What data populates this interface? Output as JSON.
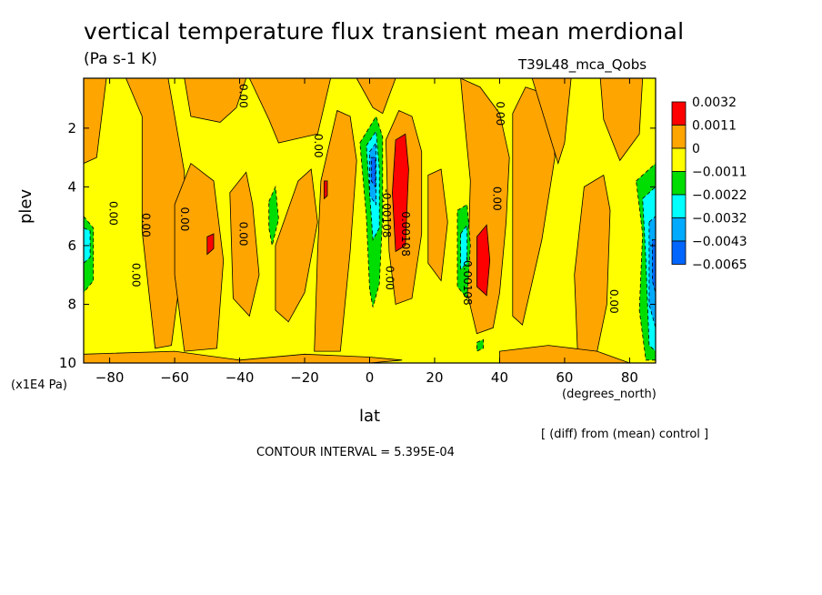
{
  "chart_data": {
    "type": "heatmap",
    "title": "vertical temperature flux transient mean merdional",
    "subtitle": "(Pa s-1 K)",
    "run_name": "T39L48_mca_Qobs",
    "xlabel": "lat",
    "xunits": "(degrees_north)",
    "ylabel": "plev",
    "yunits": "(x1E4 Pa)",
    "note": "[ (diff) from (mean) control ]",
    "contour_interval": "CONTOUR INTERVAL = 5.395E-04",
    "xlim": [
      -88,
      88
    ],
    "ylim": [
      10,
      0.3
    ],
    "xticks": [
      -80,
      -60,
      -40,
      -20,
      0,
      20,
      40,
      60,
      80
    ],
    "yticks": [
      2,
      4,
      6,
      8,
      10
    ],
    "legend": {
      "position": "right",
      "levels": [
        "0.0032",
        "0.0011",
        "0",
        "-0.0011",
        "-0.0022",
        "-0.0032",
        "-0.0043",
        "-0.0065"
      ],
      "colors": [
        "#ff0000",
        "#ffa500",
        "#ffff00",
        "#00dd00",
        "#00ffff",
        "#00aaff",
        "#0066ff"
      ]
    },
    "contour_labels": [
      {
        "text": "0.00",
        "lat": -40,
        "plev": 0.9
      },
      {
        "text": "0.00",
        "lat": -80,
        "plev": 4.9
      },
      {
        "text": "0.00",
        "lat": -73,
        "plev": 7.0
      },
      {
        "text": "0.00",
        "lat": -70,
        "plev": 5.3
      },
      {
        "text": "0.00",
        "lat": -58,
        "plev": 5.1
      },
      {
        "text": "0.00",
        "lat": -40,
        "plev": 5.6
      },
      {
        "text": "0.00",
        "lat": -17,
        "plev": 2.6
      },
      {
        "text": "-0.00108",
        "lat": 4,
        "plev": 4.9
      },
      {
        "text": "0.00108",
        "lat": 10,
        "plev": 5.6
      },
      {
        "text": "0.00",
        "lat": 5,
        "plev": 7.1
      },
      {
        "text": "-0.00108",
        "lat": 29,
        "plev": 7.2
      },
      {
        "text": "0.00",
        "lat": 38,
        "plev": 4.4
      },
      {
        "text": "0.00",
        "lat": 39,
        "plev": 1.5
      },
      {
        "text": "0.00",
        "lat": 74,
        "plev": 7.9
      }
    ],
    "regions": [
      {
        "level": "0.0011",
        "points": [
          [
            -88,
            3.2
          ],
          [
            -84,
            3.0
          ],
          [
            -81,
            0.3
          ],
          [
            -88,
            0.3
          ]
        ]
      },
      {
        "level": "0.0011",
        "points": [
          [
            -75,
            0.3
          ],
          [
            -70,
            1.6
          ],
          [
            -70,
            5.5
          ],
          [
            -66,
            9.5
          ],
          [
            -61,
            9.4
          ],
          [
            -57,
            6
          ],
          [
            -57,
            3.5
          ],
          [
            -62,
            0.3
          ]
        ]
      },
      {
        "level": "0.0011",
        "points": [
          [
            -57,
            0.3
          ],
          [
            -55,
            1.6
          ],
          [
            -46,
            1.8
          ],
          [
            -41,
            1.3
          ],
          [
            -38,
            0.3
          ]
        ]
      },
      {
        "level": "0.0011",
        "points": [
          [
            -60,
            4.6
          ],
          [
            -55,
            3.2
          ],
          [
            -48,
            3.8
          ],
          [
            -45,
            6.5
          ],
          [
            -47,
            9.5
          ],
          [
            -57,
            9.6
          ],
          [
            -60,
            7
          ]
        ]
      },
      {
        "level": "0.0011",
        "points": [
          [
            -43,
            4.2
          ],
          [
            -38,
            3.5
          ],
          [
            -36,
            4.6
          ],
          [
            -34,
            7
          ],
          [
            -37,
            8.4
          ],
          [
            -42,
            7.8
          ]
        ]
      },
      {
        "level": "0.0011",
        "points": [
          [
            -37,
            0.3
          ],
          [
            -31,
            1.7
          ],
          [
            -28,
            2.5
          ],
          [
            -20,
            2.3
          ],
          [
            -16,
            2.2
          ],
          [
            -12,
            0.3
          ]
        ]
      },
      {
        "level": "0.0011",
        "points": [
          [
            -22,
            3.8
          ],
          [
            -18,
            3.4
          ],
          [
            -16,
            5.2
          ],
          [
            -20,
            7.6
          ],
          [
            -25,
            8.6
          ],
          [
            -29,
            8.2
          ],
          [
            -29,
            6.0
          ]
        ]
      },
      {
        "level": "0.0011",
        "points": [
          [
            -15,
            3.8
          ],
          [
            -10,
            1.4
          ],
          [
            -6,
            1.6
          ],
          [
            -4,
            3.1
          ],
          [
            -6,
            6.2
          ],
          [
            -9,
            9.6
          ],
          [
            -17,
            9.6
          ],
          [
            -16,
            6.2
          ]
        ]
      },
      {
        "level": "0.0011",
        "points": [
          [
            -4,
            0.3
          ],
          [
            1,
            1.3
          ],
          [
            4,
            1.5
          ],
          [
            8,
            0.3
          ]
        ]
      },
      {
        "level": "0.0011",
        "points": [
          [
            5,
            2.4
          ],
          [
            9,
            1.4
          ],
          [
            13,
            1.6
          ],
          [
            16,
            2.8
          ],
          [
            16,
            5.6
          ],
          [
            13,
            7.8
          ],
          [
            8,
            8.0
          ],
          [
            6,
            6.2
          ]
        ]
      },
      {
        "level": "0.0011",
        "points": [
          [
            18,
            3.6
          ],
          [
            22,
            3.4
          ],
          [
            24,
            5.2
          ],
          [
            22,
            7.2
          ],
          [
            18,
            6.6
          ]
        ]
      },
      {
        "level": "0.0011",
        "points": [
          [
            28,
            0.3
          ],
          [
            34,
            0.6
          ],
          [
            40,
            1.5
          ],
          [
            43,
            3.0
          ],
          [
            42,
            5.2
          ],
          [
            40,
            7.6
          ],
          [
            38,
            8.8
          ],
          [
            33,
            9.0
          ],
          [
            30,
            7.6
          ],
          [
            31,
            3.8
          ],
          [
            29,
            1.5
          ]
        ]
      },
      {
        "level": "0.0011",
        "points": [
          [
            44,
            1.5
          ],
          [
            48,
            0.6
          ],
          [
            56,
            0.9
          ],
          [
            57,
            3.0
          ],
          [
            53,
            5.8
          ],
          [
            47,
            8.7
          ],
          [
            44,
            8.4
          ]
        ]
      },
      {
        "level": "0.0011",
        "points": [
          [
            50,
            0.3
          ],
          [
            62,
            0.3
          ],
          [
            60,
            2.5
          ],
          [
            58,
            3.2
          ]
        ]
      },
      {
        "level": "0.0011",
        "points": [
          [
            66,
            4.0
          ],
          [
            72,
            3.6
          ],
          [
            74,
            4.8
          ],
          [
            73,
            8.0
          ],
          [
            70,
            9.6
          ],
          [
            64,
            9.6
          ],
          [
            63,
            7
          ]
        ]
      },
      {
        "level": "0.0011",
        "points": [
          [
            71,
            0.3
          ],
          [
            84,
            0.3
          ],
          [
            83,
            2.2
          ],
          [
            77,
            3.1
          ],
          [
            72,
            1.7
          ]
        ]
      },
      {
        "level": "0.0011",
        "points": [
          [
            -88,
            9.7
          ],
          [
            -60,
            9.6
          ],
          [
            -40,
            9.9
          ],
          [
            -20,
            9.7
          ],
          [
            0,
            9.8
          ],
          [
            10,
            9.9
          ],
          [
            0,
            10
          ],
          [
            -88,
            10
          ]
        ]
      },
      {
        "level": "0.0011",
        "points": [
          [
            40,
            9.6
          ],
          [
            55,
            9.4
          ],
          [
            70,
            9.6
          ],
          [
            80,
            10
          ],
          [
            40,
            10
          ]
        ]
      },
      {
        "level": "0.0032",
        "points": [
          [
            -50,
            5.7
          ],
          [
            -48,
            5.6
          ],
          [
            -48,
            6.1
          ],
          [
            -50,
            6.3
          ]
        ]
      },
      {
        "level": "0.0032",
        "points": [
          [
            -14,
            3.8
          ],
          [
            -13,
            3.8
          ],
          [
            -13,
            4.3
          ],
          [
            -14,
            4.4
          ]
        ]
      },
      {
        "level": "0.0032",
        "points": [
          [
            8,
            2.4
          ],
          [
            11,
            2.2
          ],
          [
            12,
            3.4
          ],
          [
            11,
            6.0
          ],
          [
            8,
            6.2
          ],
          [
            7,
            4.2
          ]
        ]
      },
      {
        "level": "0.0032",
        "points": [
          [
            33,
            5.7
          ],
          [
            36,
            5.3
          ],
          [
            37,
            6.5
          ],
          [
            36,
            7.7
          ],
          [
            33,
            7.4
          ],
          [
            33,
            6.4
          ]
        ]
      },
      {
        "level": "-0.0011",
        "points": [
          [
            -88,
            5.0
          ],
          [
            -85,
            5.4
          ],
          [
            -85,
            7.2
          ],
          [
            -88,
            7.6
          ]
        ]
      },
      {
        "level": "-0.0011",
        "points": [
          [
            -31,
            4.5
          ],
          [
            -29,
            4.0
          ],
          [
            -28,
            5.1
          ],
          [
            -30,
            6.0
          ],
          [
            -31,
            5.4
          ]
        ]
      },
      {
        "level": "-0.0011",
        "points": [
          [
            -3,
            2.5
          ],
          [
            2,
            1.6
          ],
          [
            4,
            2.3
          ],
          [
            4,
            5.0
          ],
          [
            3,
            7.3
          ],
          [
            1,
            8.1
          ],
          [
            0,
            7.5
          ],
          [
            -1,
            5.0
          ]
        ]
      },
      {
        "level": "-0.0011",
        "points": [
          [
            27,
            4.8
          ],
          [
            30,
            4.6
          ],
          [
            31,
            6.0
          ],
          [
            30,
            7.8
          ],
          [
            27,
            7.4
          ]
        ]
      },
      {
        "level": "-0.0011",
        "points": [
          [
            82,
            3.8
          ],
          [
            88,
            3.2
          ],
          [
            88,
            9.9
          ],
          [
            85,
            9.9
          ],
          [
            83,
            8.2
          ],
          [
            84,
            5.6
          ]
        ]
      },
      {
        "level": "-0.0011",
        "points": [
          [
            33,
            9.3
          ],
          [
            35,
            9.2
          ],
          [
            35,
            9.5
          ],
          [
            33,
            9.6
          ]
        ]
      },
      {
        "level": "-0.0022",
        "points": [
          [
            -88,
            5.4
          ],
          [
            -86,
            5.5
          ],
          [
            -86,
            6.4
          ],
          [
            -88,
            6.6
          ]
        ]
      },
      {
        "level": "-0.0022",
        "points": [
          [
            -1,
            2.6
          ],
          [
            2,
            2.1
          ],
          [
            3,
            3.4
          ],
          [
            3,
            5.4
          ],
          [
            1,
            5.8
          ],
          [
            0,
            4.2
          ]
        ]
      },
      {
        "level": "-0.0022",
        "points": [
          [
            28,
            5.6
          ],
          [
            30,
            5.3
          ],
          [
            30,
            6.6
          ],
          [
            28,
            6.8
          ]
        ]
      },
      {
        "level": "-0.0022",
        "points": [
          [
            84,
            4.4
          ],
          [
            88,
            4.0
          ],
          [
            88,
            9.6
          ],
          [
            86,
            9.4
          ],
          [
            85,
            6.5
          ]
        ]
      },
      {
        "level": "-0.0032",
        "points": [
          [
            0,
            2.8
          ],
          [
            2,
            2.5
          ],
          [
            2,
            4.6
          ],
          [
            0,
            4.3
          ]
        ]
      },
      {
        "level": "-0.0032",
        "points": [
          [
            86,
            5.2
          ],
          [
            88,
            5.0
          ],
          [
            88,
            8.8
          ],
          [
            86,
            8.0
          ]
        ]
      },
      {
        "level": "-0.0043",
        "points": [
          [
            0.5,
            3.0
          ],
          [
            1.8,
            3.0
          ],
          [
            1.8,
            4.0
          ],
          [
            0.5,
            3.8
          ]
        ]
      },
      {
        "level": "-0.0043",
        "points": [
          [
            87,
            5.8
          ],
          [
            88,
            5.8
          ],
          [
            88,
            7.6
          ],
          [
            87,
            7.2
          ]
        ]
      }
    ]
  }
}
